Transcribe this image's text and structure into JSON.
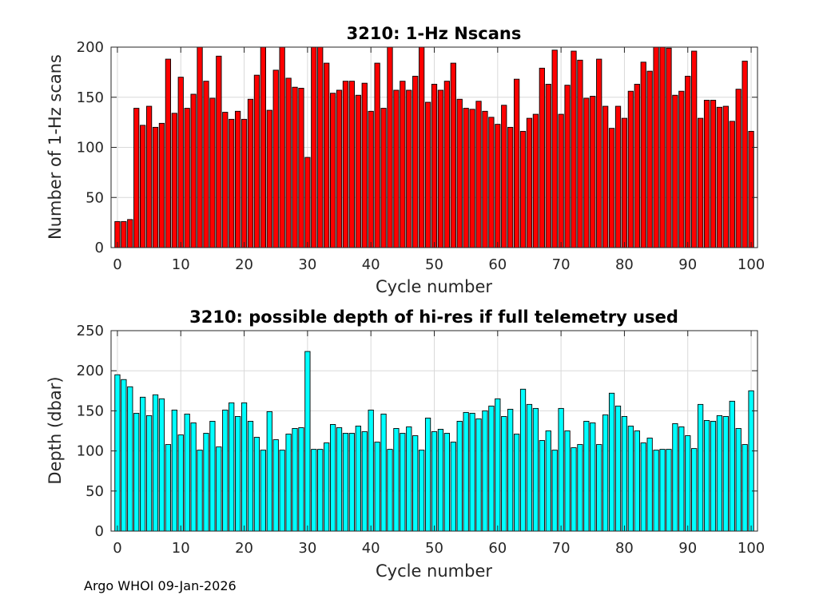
{
  "footer": "Argo WHOI 09-Jan-2026",
  "colors": {
    "top_bar": "#ff0000",
    "bottom_bar": "#00ffff",
    "bar_edge": "#000000",
    "grid": "#d9d9d9"
  },
  "chart_data": [
    {
      "type": "bar",
      "title": "3210: 1-Hz Nscans",
      "xlabel": "Cycle number",
      "ylabel": "Number of 1-Hz scans",
      "xlim": [
        -1,
        101
      ],
      "ylim": [
        0,
        200
      ],
      "xticks": [
        0,
        10,
        20,
        30,
        40,
        50,
        60,
        70,
        80,
        90,
        100
      ],
      "yticks": [
        0,
        50,
        100,
        150,
        200
      ],
      "grid": true,
      "x_start": 0,
      "values": [
        26,
        26,
        28,
        139,
        122,
        141,
        120,
        124,
        188,
        134,
        170,
        139,
        153,
        200,
        166,
        149,
        191,
        135,
        128,
        136,
        128,
        148,
        172,
        200,
        137,
        177,
        200,
        169,
        160,
        159,
        90,
        200,
        200,
        184,
        154,
        157,
        166,
        166,
        152,
        164,
        136,
        184,
        139,
        200,
        157,
        166,
        157,
        171,
        200,
        145,
        163,
        157,
        166,
        184,
        148,
        139,
        138,
        146,
        136,
        130,
        123,
        142,
        120,
        168,
        116,
        129,
        133,
        179,
        163,
        197,
        133,
        162,
        196,
        187,
        149,
        151,
        188,
        141,
        119,
        141,
        129,
        156,
        163,
        185,
        176,
        200,
        200,
        199,
        152,
        156,
        171,
        196,
        129,
        147,
        147,
        140,
        141,
        126,
        158,
        186,
        116
      ]
    },
    {
      "type": "bar",
      "title": "3210: possible depth of hi-res if full telemetry used",
      "xlabel": "Cycle number",
      "ylabel": "Depth (dbar)",
      "xlim": [
        -1,
        101
      ],
      "ylim": [
        0,
        250
      ],
      "xticks": [
        0,
        10,
        20,
        30,
        40,
        50,
        60,
        70,
        80,
        90,
        100
      ],
      "yticks": [
        0,
        50,
        100,
        150,
        200,
        250
      ],
      "grid": true,
      "x_start": 0,
      "values": [
        195,
        189,
        180,
        147,
        167,
        144,
        170,
        165,
        108,
        151,
        120,
        146,
        135,
        101,
        122,
        137,
        105,
        151,
        160,
        143,
        160,
        137,
        117,
        101,
        149,
        114,
        101,
        121,
        128,
        129,
        224,
        102,
        102,
        110,
        133,
        129,
        122,
        122,
        131,
        124,
        151,
        111,
        146,
        102,
        128,
        122,
        130,
        119,
        101,
        141,
        124,
        127,
        122,
        111,
        137,
        148,
        147,
        140,
        150,
        156,
        165,
        143,
        152,
        121,
        177,
        158,
        153,
        113,
        125,
        101,
        153,
        125,
        104,
        108,
        137,
        135,
        108,
        145,
        172,
        156,
        143,
        131,
        125,
        110,
        116,
        101,
        102,
        102,
        134,
        130,
        119,
        103,
        158,
        138,
        137,
        144,
        143,
        162,
        128,
        108,
        175
      ]
    }
  ]
}
